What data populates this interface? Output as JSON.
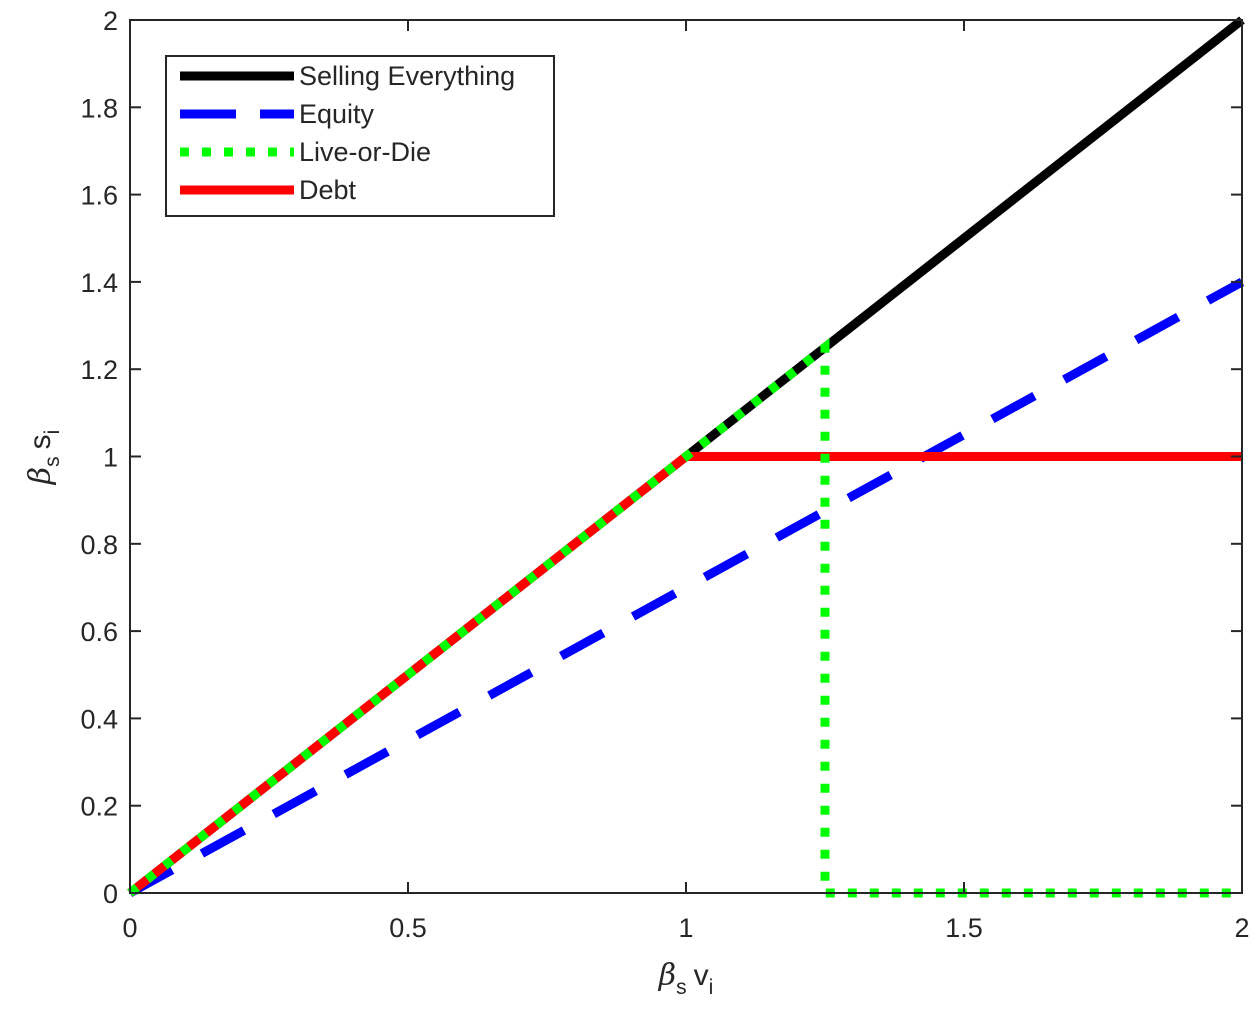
{
  "chart_data": {
    "type": "line",
    "xlabel": {
      "symbol": "β",
      "sub1": "s",
      "main": "v",
      "sub2": "i"
    },
    "ylabel": {
      "symbol": "β",
      "sub1": "s",
      "main": "s",
      "sub2": "i"
    },
    "xlim": [
      0,
      2
    ],
    "ylim": [
      0,
      2
    ],
    "xticks": [
      0,
      0.5,
      1,
      1.5,
      2
    ],
    "xtick_labels": [
      "0",
      "0.5",
      "1",
      "1.5",
      "2"
    ],
    "yticks": [
      0,
      0.2,
      0.4,
      0.6,
      0.8,
      1,
      1.2,
      1.4,
      1.6,
      1.8,
      2
    ],
    "ytick_labels": [
      "0",
      "0.2",
      "0.4",
      "0.6",
      "0.8",
      "1",
      "1.2",
      "1.4",
      "1.6",
      "1.8",
      "2"
    ],
    "grid": false,
    "legend_position": "top-left",
    "series": [
      {
        "name": "Selling Everything",
        "color": "#000000",
        "style": "solid",
        "x": [
          0,
          2
        ],
        "y": [
          0,
          2
        ]
      },
      {
        "name": "Equity",
        "color": "#0000ff",
        "style": "dashed",
        "x": [
          0,
          2
        ],
        "y": [
          0,
          1.4
        ]
      },
      {
        "name": "Live-or-Die",
        "color": "#00ff00",
        "style": "dotted",
        "x": [
          0,
          1.25,
          1.25,
          2
        ],
        "y": [
          0,
          1.25,
          0,
          0
        ]
      },
      {
        "name": "Debt",
        "color": "#ff0000",
        "style": "solid",
        "x": [
          0,
          1,
          2
        ],
        "y": [
          0,
          1,
          1
        ]
      }
    ]
  }
}
